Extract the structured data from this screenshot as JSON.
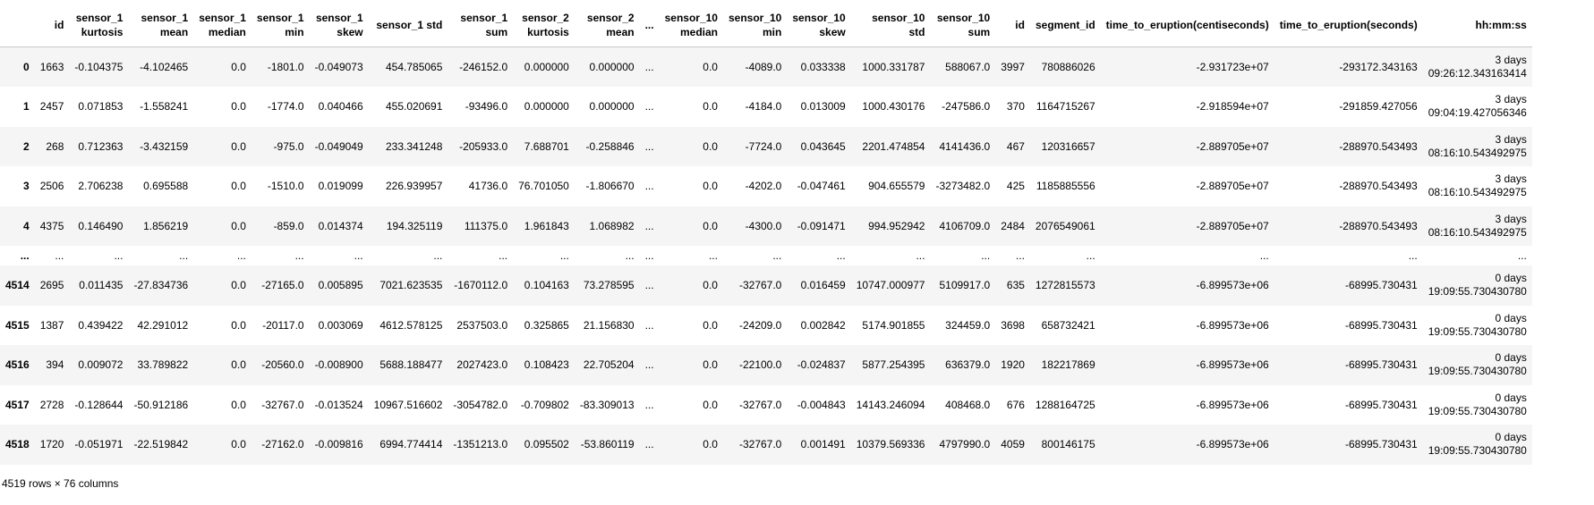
{
  "columns": [
    {
      "l1": "",
      "l2": ""
    },
    {
      "l1": "",
      "l2": "id"
    },
    {
      "l1": "sensor_1",
      "l2": "kurtosis"
    },
    {
      "l1": "sensor_1",
      "l2": "mean"
    },
    {
      "l1": "sensor_1",
      "l2": "median"
    },
    {
      "l1": "sensor_1",
      "l2": "min"
    },
    {
      "l1": "sensor_1",
      "l2": "skew"
    },
    {
      "l1": "",
      "l2": "sensor_1 std"
    },
    {
      "l1": "sensor_1",
      "l2": "sum"
    },
    {
      "l1": "sensor_2",
      "l2": "kurtosis"
    },
    {
      "l1": "sensor_2",
      "l2": "mean"
    },
    {
      "l1": "",
      "l2": "..."
    },
    {
      "l1": "sensor_10",
      "l2": "median"
    },
    {
      "l1": "sensor_10",
      "l2": "min"
    },
    {
      "l1": "sensor_10",
      "l2": "skew"
    },
    {
      "l1": "sensor_10",
      "l2": "std"
    },
    {
      "l1": "sensor_10",
      "l2": "sum"
    },
    {
      "l1": "",
      "l2": "id"
    },
    {
      "l1": "",
      "l2": "segment_id"
    },
    {
      "l1": "",
      "l2": "time_to_eruption(centiseconds)"
    },
    {
      "l1": "",
      "l2": "time_to_eruption(seconds)"
    },
    {
      "l1": "",
      "l2": "hh:mm:ss"
    }
  ],
  "rows": [
    {
      "index": "0",
      "cells": [
        "1663",
        "-0.104375",
        "-4.102465",
        "0.0",
        "-1801.0",
        "-0.049073",
        "454.785065",
        "-246152.0",
        "0.000000",
        "0.000000",
        "...",
        "0.0",
        "-4089.0",
        "0.033338",
        "1000.331787",
        "588067.0",
        "3997",
        "780886026",
        "-2.931723e+07",
        "-293172.343163"
      ],
      "time1": "3 days",
      "time2": "09:26:12.343163414"
    },
    {
      "index": "1",
      "cells": [
        "2457",
        "0.071853",
        "-1.558241",
        "0.0",
        "-1774.0",
        "0.040466",
        "455.020691",
        "-93496.0",
        "0.000000",
        "0.000000",
        "...",
        "0.0",
        "-4184.0",
        "0.013009",
        "1000.430176",
        "-247586.0",
        "370",
        "1164715267",
        "-2.918594e+07",
        "-291859.427056"
      ],
      "time1": "3 days",
      "time2": "09:04:19.427056346"
    },
    {
      "index": "2",
      "cells": [
        "268",
        "0.712363",
        "-3.432159",
        "0.0",
        "-975.0",
        "-0.049049",
        "233.341248",
        "-205933.0",
        "7.688701",
        "-0.258846",
        "...",
        "0.0",
        "-7724.0",
        "0.043645",
        "2201.474854",
        "4141436.0",
        "467",
        "120316657",
        "-2.889705e+07",
        "-288970.543493"
      ],
      "time1": "3 days",
      "time2": "08:16:10.543492975"
    },
    {
      "index": "3",
      "cells": [
        "2506",
        "2.706238",
        "0.695588",
        "0.0",
        "-1510.0",
        "0.019099",
        "226.939957",
        "41736.0",
        "76.701050",
        "-1.806670",
        "...",
        "0.0",
        "-4202.0",
        "-0.047461",
        "904.655579",
        "-3273482.0",
        "425",
        "1185885556",
        "-2.889705e+07",
        "-288970.543493"
      ],
      "time1": "3 days",
      "time2": "08:16:10.543492975"
    },
    {
      "index": "4",
      "cells": [
        "4375",
        "0.146490",
        "1.856219",
        "0.0",
        "-859.0",
        "0.014374",
        "194.325119",
        "111375.0",
        "1.961843",
        "1.068982",
        "...",
        "0.0",
        "-4300.0",
        "-0.091471",
        "994.952942",
        "4106709.0",
        "2484",
        "2076549061",
        "-2.889705e+07",
        "-288970.543493"
      ],
      "time1": "3 days",
      "time2": "08:16:10.543492975"
    },
    {
      "index": "...",
      "ellipsis": true,
      "cells": [
        "...",
        "...",
        "...",
        "...",
        "...",
        "...",
        "...",
        "...",
        "...",
        "...",
        "...",
        "...",
        "...",
        "...",
        "...",
        "...",
        "...",
        "...",
        "...",
        "..."
      ],
      "time1": "...",
      "time2": ""
    },
    {
      "index": "4514",
      "cells": [
        "2695",
        "0.011435",
        "-27.834736",
        "0.0",
        "-27165.0",
        "0.005895",
        "7021.623535",
        "-1670112.0",
        "0.104163",
        "73.278595",
        "...",
        "0.0",
        "-32767.0",
        "0.016459",
        "10747.000977",
        "5109917.0",
        "635",
        "1272815573",
        "-6.899573e+06",
        "-68995.730431"
      ],
      "time1": "0 days",
      "time2": "19:09:55.730430780"
    },
    {
      "index": "4515",
      "cells": [
        "1387",
        "0.439422",
        "42.291012",
        "0.0",
        "-20117.0",
        "0.003069",
        "4612.578125",
        "2537503.0",
        "0.325865",
        "21.156830",
        "...",
        "0.0",
        "-24209.0",
        "0.002842",
        "5174.901855",
        "324459.0",
        "3698",
        "658732421",
        "-6.899573e+06",
        "-68995.730431"
      ],
      "time1": "0 days",
      "time2": "19:09:55.730430780"
    },
    {
      "index": "4516",
      "cells": [
        "394",
        "0.009072",
        "33.789822",
        "0.0",
        "-20560.0",
        "-0.008900",
        "5688.188477",
        "2027423.0",
        "0.108423",
        "22.705204",
        "...",
        "0.0",
        "-22100.0",
        "-0.024837",
        "5877.254395",
        "636379.0",
        "1920",
        "182217869",
        "-6.899573e+06",
        "-68995.730431"
      ],
      "time1": "0 days",
      "time2": "19:09:55.730430780"
    },
    {
      "index": "4517",
      "cells": [
        "2728",
        "-0.128644",
        "-50.912186",
        "0.0",
        "-32767.0",
        "-0.013524",
        "10967.516602",
        "-3054782.0",
        "-0.709802",
        "-83.309013",
        "...",
        "0.0",
        "-32767.0",
        "-0.004843",
        "14143.246094",
        "408468.0",
        "676",
        "1288164725",
        "-6.899573e+06",
        "-68995.730431"
      ],
      "time1": "0 days",
      "time2": "19:09:55.730430780"
    },
    {
      "index": "4518",
      "cells": [
        "1720",
        "-0.051971",
        "-22.519842",
        "0.0",
        "-27162.0",
        "-0.009816",
        "6994.774414",
        "-1351213.0",
        "0.095502",
        "-53.860119",
        "...",
        "0.0",
        "-32767.0",
        "0.001491",
        "10379.569336",
        "4797990.0",
        "4059",
        "800146175",
        "-6.899573e+06",
        "-68995.730431"
      ],
      "time1": "0 days",
      "time2": "19:09:55.730430780"
    }
  ],
  "footer": "4519 rows × 76 columns"
}
